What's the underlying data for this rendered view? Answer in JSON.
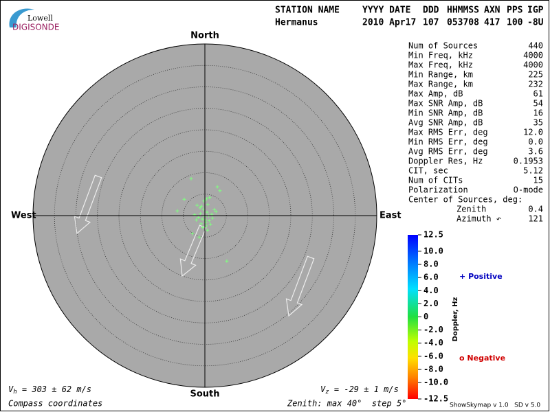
{
  "logo": {
    "top": "Lowell",
    "bottom": "DIGISONDE"
  },
  "header": [
    [
      "STATION NAME",
      "Hermanus"
    ],
    [
      "YYYY DATE",
      "2010 Apr17"
    ],
    [
      "DDD",
      "107"
    ],
    [
      "HHMMSS",
      "053708"
    ],
    [
      "AXN",
      "417"
    ],
    [
      "PPS",
      "100"
    ],
    [
      "IGP",
      "-8U"
    ]
  ],
  "stats": [
    [
      "Num of Sources",
      "440"
    ],
    [
      "Min Freq, kHz",
      "4000"
    ],
    [
      "Max Freq, kHz",
      "4000"
    ],
    [
      "Min Range, km",
      "225"
    ],
    [
      "Max Range, km",
      "232"
    ],
    [
      "Max Amp, dB",
      "61"
    ],
    [
      "Max SNR Amp, dB",
      "54"
    ],
    [
      "Min SNR Amp, dB",
      "16"
    ],
    [
      "Avg SNR Amp, dB",
      "35"
    ],
    [
      "Max RMS Err, deg",
      "12.0"
    ],
    [
      "Min RMS Err, deg",
      "0.0"
    ],
    [
      "Avg RMS Err, deg",
      "3.6"
    ],
    [
      "Doppler Res, Hz",
      "0.1953"
    ],
    [
      "CIT, sec",
      "5.12"
    ],
    [
      "Num of CITs",
      "15"
    ],
    [
      "Polarization",
      "O-mode"
    ],
    [
      "Center of Sources, deg:",
      null
    ],
    [
      "Zenith",
      "0.4"
    ],
    [
      "Azimuth ↶",
      "121"
    ]
  ],
  "footer": {
    "vh": {
      "symbol": "V",
      "sub": "h",
      "text": "= 303 ± 62 m/s"
    },
    "vz": {
      "symbol": "V",
      "sub": "z",
      "text": "= -29 ± 1 m/s"
    },
    "coords": "Compass coordinates",
    "zenith": "Zenith: max 40°  step 5°",
    "version": "ShowSkymap v 1.0   SD v 5.0"
  },
  "chart_data": {
    "type": "polar-scatter",
    "directions": {
      "north": "North",
      "south": "South",
      "west": "West",
      "east": "East"
    },
    "rlim": [
      0,
      40
    ],
    "rticks": [
      5,
      10,
      15,
      20,
      25,
      30,
      35
    ],
    "series": [
      {
        "color": "#80ff80",
        "x": [
          2.9,
          3.5,
          -3.2,
          -4.8,
          -6.4,
          5.1,
          -1.3,
          -2.9,
          -1.0,
          -0.6,
          0,
          0.5,
          1.0,
          -0.3,
          0.2,
          -1.5,
          1.6,
          -0.8,
          0.7,
          0.3,
          -0.2,
          -1.1,
          1.3,
          2.2,
          -2.0,
          0.9,
          -0.5,
          0.4,
          1.8,
          -1.8,
          0.1,
          -0.9,
          2.6,
          -2.4,
          1.1,
          0.6
        ],
        "y": [
          6.7,
          5.8,
          8.6,
          3.8,
          1.1,
          -10.6,
          -5.0,
          -4.2,
          0.5,
          -0.8,
          -0.2,
          0.8,
          -1.2,
          1.5,
          -1.6,
          -0.4,
          0.3,
          2.2,
          2.6,
          -2.4,
          3.4,
          1.8,
          -2.0,
          1.4,
          -1.0,
          0,
          -2.8,
          3.9,
          -0.6,
          2.4,
          -1.0,
          -1.9,
          0.9,
          0.2,
          4.2,
          -3.4
        ]
      }
    ],
    "colorbar": {
      "label": "Doppler, Hz",
      "clim": [
        -12.5,
        12.5
      ],
      "cticks": [
        12.5,
        {
          "value": 10,
          "label": "10.0"
        },
        {
          "value": 8,
          "label": "8.0"
        },
        {
          "value": 6,
          "label": "6.0"
        },
        {
          "value": 4,
          "label": "4.0"
        },
        {
          "value": 2,
          "label": "2.0"
        },
        0,
        {
          "value": -2,
          "label": "-2.0"
        },
        {
          "value": -4,
          "label": "-4.0"
        },
        {
          "value": -6,
          "label": "-6.0"
        },
        {
          "value": -8,
          "label": "-8.0"
        },
        {
          "value": -10,
          "label": "-10.0"
        },
        -12.5
      ]
    },
    "legend": {
      "positive": {
        "symbol": "+",
        "text": "Positive",
        "color": "#0000c0"
      },
      "negative": {
        "symbol": "o",
        "text": "Negative",
        "color": "#d00000"
      }
    }
  }
}
